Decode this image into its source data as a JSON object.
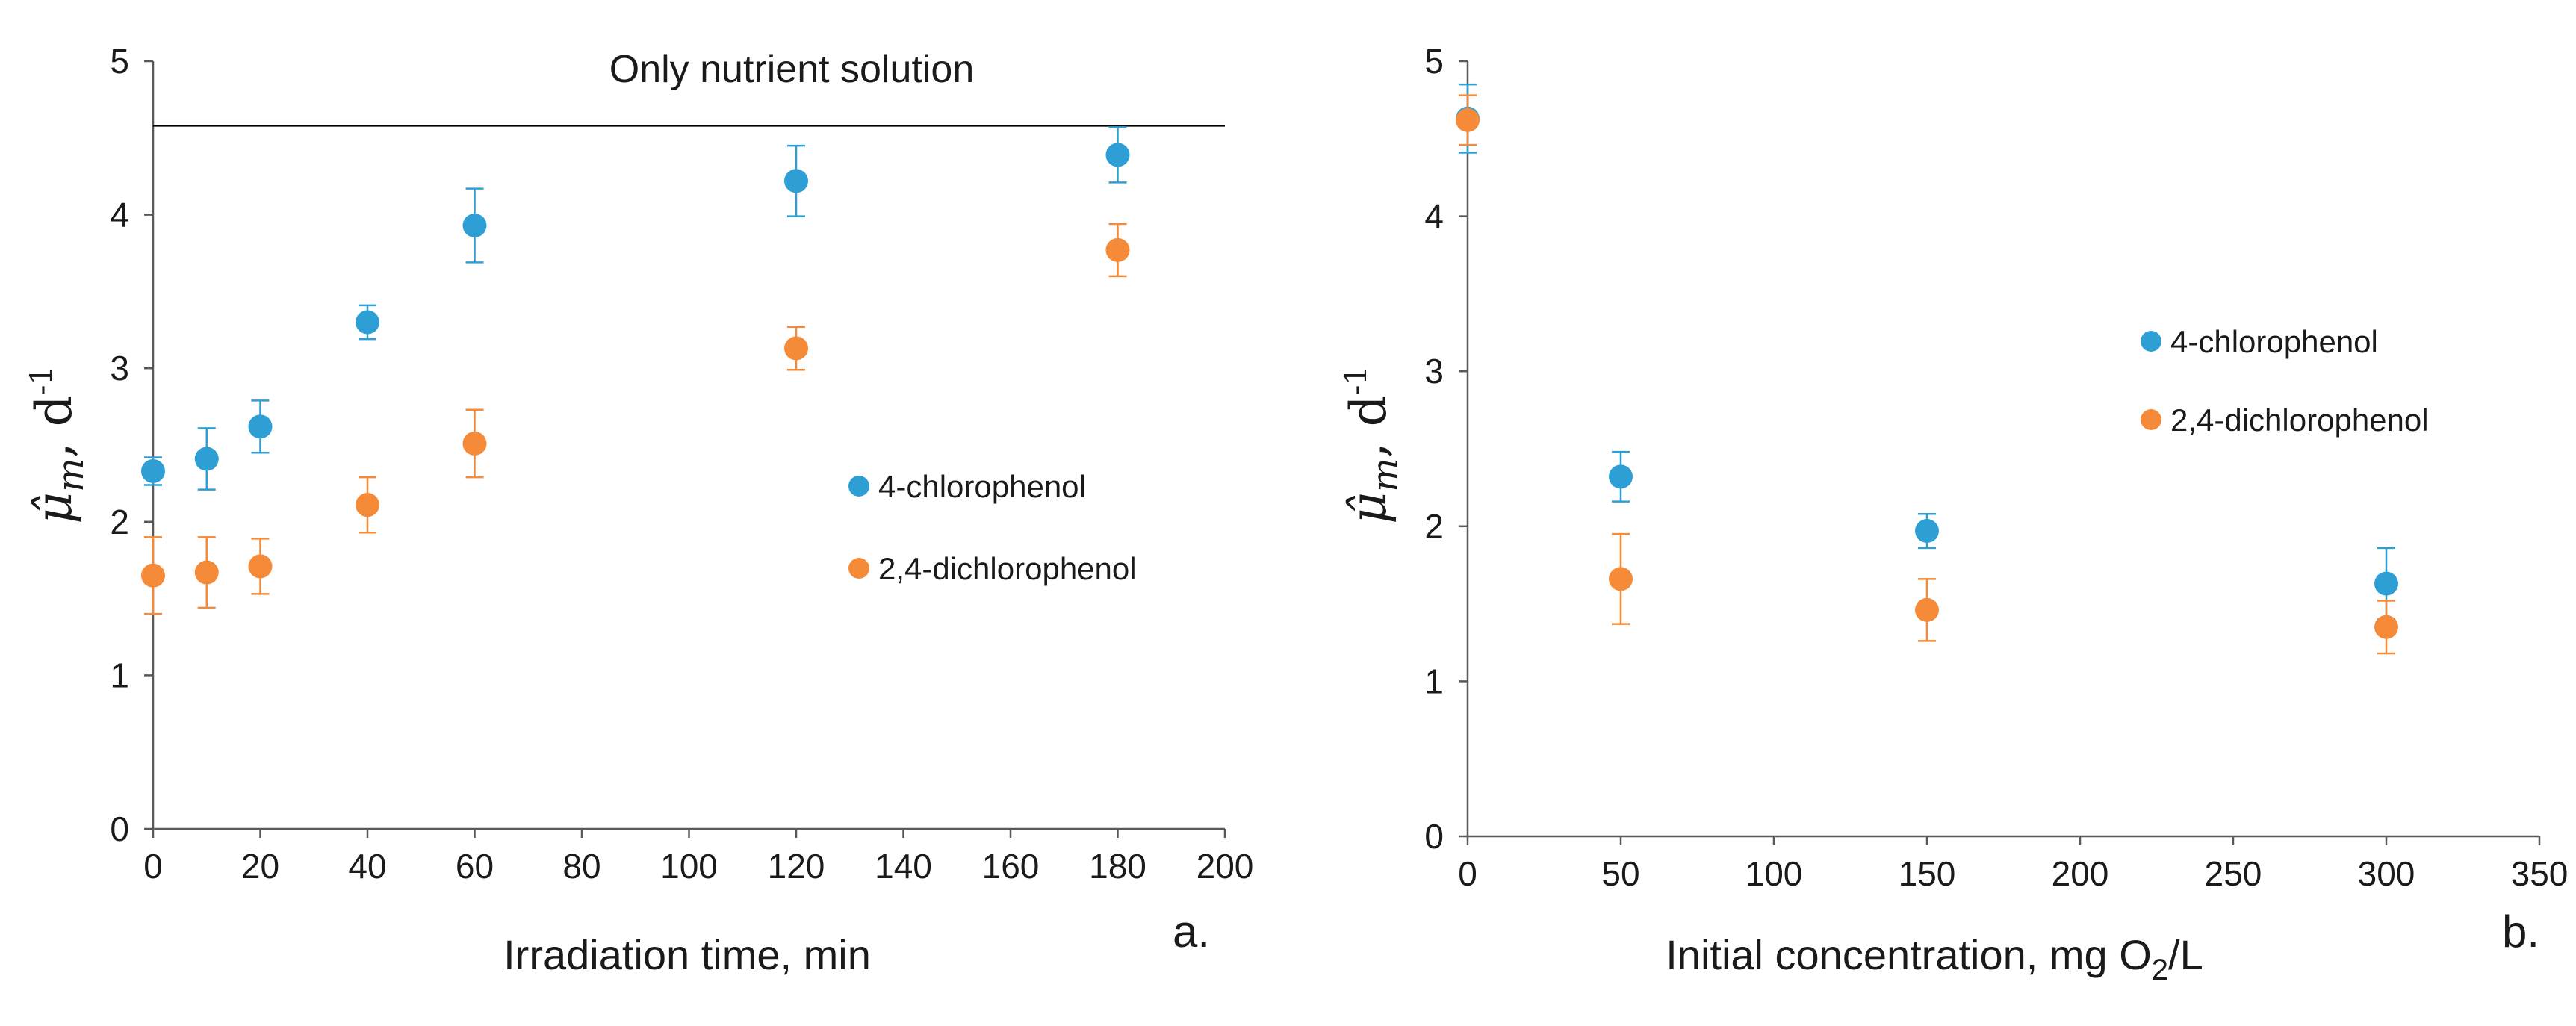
{
  "chart_data": [
    {
      "type": "scatter",
      "panel_label": "a.",
      "xlabel": "Irradiation time, min",
      "ylabel": {
        "symbol": "μ̂",
        "subscript": "m",
        "unit": ", d",
        "exponent": "-1"
      },
      "xlim": [
        0,
        200
      ],
      "ylim": [
        0,
        5
      ],
      "xticks": [
        0,
        20,
        40,
        60,
        80,
        100,
        120,
        140,
        160,
        180,
        200
      ],
      "yticks": [
        0,
        1,
        2,
        3,
        4,
        5
      ],
      "grid": false,
      "legend_position": "center-right",
      "reference_line": {
        "y": 4.58,
        "label": "Only nutrient solution"
      },
      "series": [
        {
          "name": "4-chlorophenol",
          "color": "#2e9fd5",
          "x": [
            0,
            10,
            20,
            40,
            60,
            120,
            180
          ],
          "y": [
            2.33,
            2.41,
            2.62,
            3.3,
            3.93,
            4.22,
            4.39
          ],
          "err": [
            0.09,
            0.2,
            0.17,
            0.11,
            0.24,
            0.23,
            0.18
          ]
        },
        {
          "name": "2,4-dichlorophenol",
          "color": "#f58a38",
          "x": [
            0,
            10,
            20,
            40,
            60,
            120,
            180
          ],
          "y": [
            1.65,
            1.67,
            1.71,
            2.11,
            2.51,
            3.13,
            3.77
          ],
          "err": [
            0.25,
            0.23,
            0.18,
            0.18,
            0.22,
            0.14,
            0.17
          ]
        }
      ]
    },
    {
      "type": "scatter",
      "panel_label": "b.",
      "xlabel": "Initial concentration, mg O",
      "xlabel_sub": "2",
      "xlabel_tail": "/L",
      "ylabel": {
        "symbol": "μ̂",
        "subscript": "m",
        "unit": ", d",
        "exponent": "-1"
      },
      "xlim": [
        0,
        350
      ],
      "ylim": [
        0,
        5
      ],
      "xticks": [
        0,
        50,
        100,
        150,
        200,
        250,
        300,
        350
      ],
      "yticks": [
        0,
        1,
        2,
        3,
        4,
        5
      ],
      "grid": false,
      "legend_position": "upper-right",
      "series": [
        {
          "name": "4-chlorophenol",
          "color": "#2e9fd5",
          "x": [
            0,
            50,
            150,
            300
          ],
          "y": [
            4.63,
            2.32,
            1.97,
            1.63
          ],
          "err": [
            0.22,
            0.16,
            0.11,
            0.23
          ]
        },
        {
          "name": "2,4-dichlorophenol",
          "color": "#f58a38",
          "x": [
            0,
            50,
            150,
            300
          ],
          "y": [
            4.62,
            1.66,
            1.46,
            1.35
          ],
          "err": [
            0.16,
            0.29,
            0.2,
            0.17
          ]
        }
      ]
    }
  ]
}
